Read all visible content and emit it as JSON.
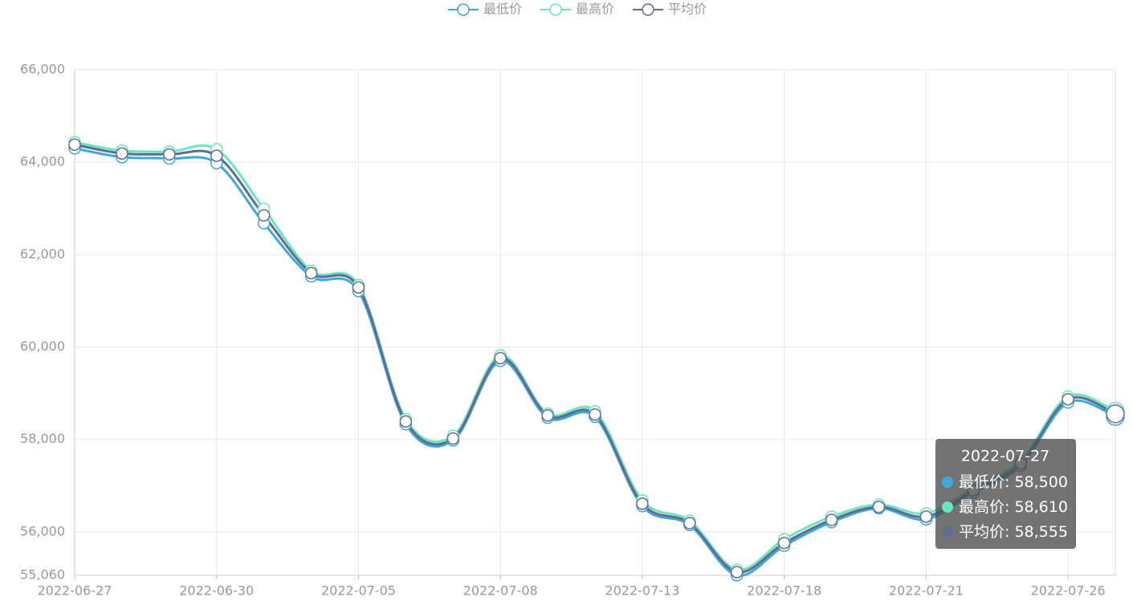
{
  "chart_data": {
    "type": "line",
    "categories": [
      "2022-06-27",
      null,
      null,
      "2022-06-30",
      null,
      null,
      "2022-07-05",
      null,
      null,
      "2022-07-08",
      null,
      null,
      "2022-07-13",
      null,
      null,
      "2022-07-18",
      null,
      null,
      "2022-07-21",
      null,
      null,
      "2022-07-26",
      null
    ],
    "series": [
      {
        "name": "最低价",
        "color": "#3fa7dc",
        "values": [
          64300,
          64110,
          64080,
          63980,
          62680,
          61530,
          61210,
          58330,
          57980,
          59700,
          58470,
          58490,
          56560,
          56150,
          55060,
          55700,
          56210,
          56510,
          56270,
          56850,
          57430,
          58800,
          58500
        ],
        "value_labels": [
          null,
          null,
          null,
          null,
          null,
          null,
          null,
          null,
          null,
          null,
          null,
          null,
          null,
          null,
          null,
          null,
          null,
          null,
          null,
          null,
          null,
          null,
          "58,500"
        ]
      },
      {
        "name": "最高价",
        "color": "#6be6c1",
        "values": [
          64430,
          64250,
          64230,
          64280,
          62990,
          61650,
          61340,
          58440,
          58080,
          59820,
          58560,
          58610,
          56680,
          56240,
          55180,
          55840,
          56330,
          56590,
          56400,
          56960,
          57540,
          58930,
          58610
        ],
        "value_labels": [
          null,
          null,
          null,
          null,
          null,
          null,
          null,
          null,
          null,
          null,
          null,
          null,
          null,
          null,
          null,
          null,
          null,
          null,
          null,
          null,
          null,
          null,
          "58,610"
        ]
      },
      {
        "name": "平均价",
        "color": "#626c91",
        "values": [
          64380,
          64190,
          64170,
          64140,
          62850,
          61600,
          61290,
          58390,
          58020,
          59760,
          58520,
          58540,
          56610,
          56190,
          55130,
          55760,
          56260,
          56540,
          56330,
          56900,
          57480,
          58870,
          58555
        ],
        "value_labels": [
          null,
          null,
          null,
          null,
          null,
          null,
          null,
          null,
          null,
          null,
          null,
          null,
          null,
          null,
          null,
          null,
          null,
          null,
          null,
          null,
          null,
          null,
          "58,555"
        ]
      }
    ],
    "ylim": [
      55060,
      66000
    ],
    "yticks": [
      {
        "value": 55060,
        "label": "55,060"
      },
      {
        "value": 56000,
        "label": "56,000"
      },
      {
        "value": 58000,
        "label": "58,000"
      },
      {
        "value": 60000,
        "label": "60,000"
      },
      {
        "value": 62000,
        "label": "62,000"
      },
      {
        "value": 64000,
        "label": "64,000"
      },
      {
        "value": 66000,
        "label": "66,000"
      }
    ],
    "grid": true,
    "smooth": true,
    "legend": "top",
    "tooltip_title": "2022-07-27"
  }
}
